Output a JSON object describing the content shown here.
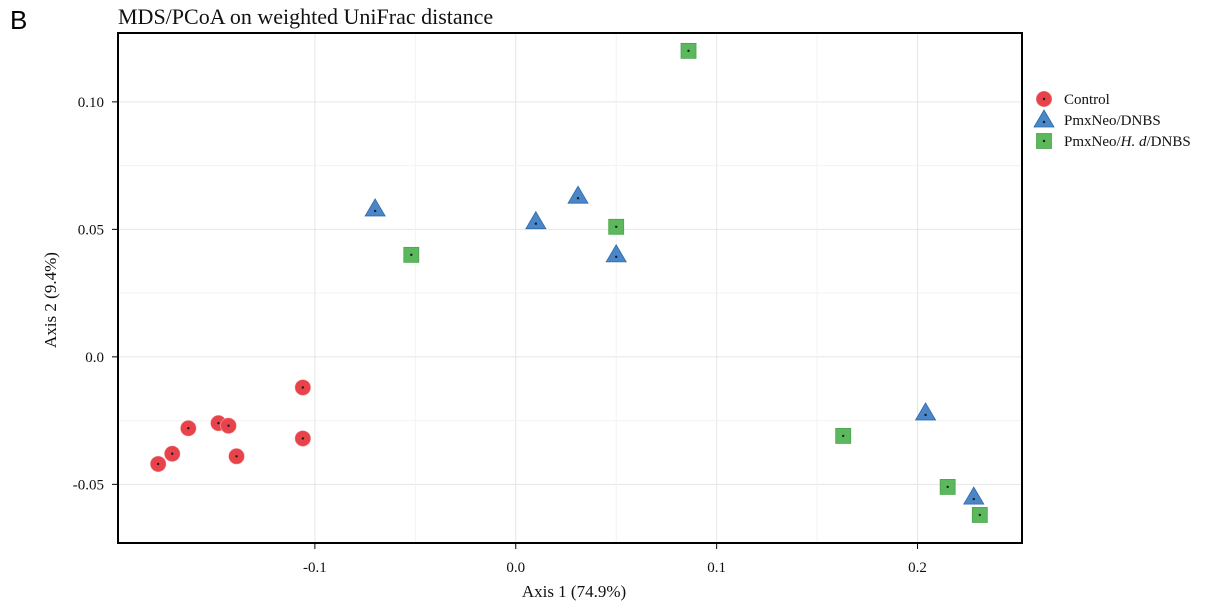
{
  "panel_letter": "B",
  "chart_data": {
    "type": "scatter",
    "title": "MDS/PCoA on weighted UniFrac distance",
    "xlabel": "Axis 1 (74.9%)",
    "ylabel": "Axis 2 (9.4%)",
    "xlim": [
      -0.198,
      0.252
    ],
    "ylim": [
      -0.073,
      0.127
    ],
    "xticks": [
      -0.1,
      0.0,
      0.1,
      0.2
    ],
    "xtick_labels": [
      "-0.1",
      "0.0",
      "0.1",
      "0.2"
    ],
    "yticks": [
      -0.05,
      0.0,
      0.05,
      0.1
    ],
    "ytick_labels": [
      "-0.05",
      "0.0",
      "0.05",
      "0.10"
    ],
    "grid": true,
    "legend_position": "right",
    "series": [
      {
        "name": "Control",
        "marker": "circle",
        "color": "#e8434b",
        "points": [
          [
            -0.178,
            -0.042
          ],
          [
            -0.171,
            -0.038
          ],
          [
            -0.163,
            -0.028
          ],
          [
            -0.148,
            -0.026
          ],
          [
            -0.143,
            -0.027
          ],
          [
            -0.139,
            -0.039
          ],
          [
            -0.106,
            -0.012
          ],
          [
            -0.106,
            -0.032
          ]
        ]
      },
      {
        "name": "PmxNeo/DNBS",
        "marker": "triangle",
        "color": "#4a86c8",
        "points": [
          [
            -0.07,
            0.058
          ],
          [
            0.01,
            0.053
          ],
          [
            0.031,
            0.063
          ],
          [
            0.05,
            0.04
          ],
          [
            0.204,
            -0.022
          ],
          [
            0.228,
            -0.055
          ]
        ]
      },
      {
        "name": "PmxNeo/H. d/DNBS",
        "legend_parts": [
          "PmxNeo/",
          "H. d",
          "/DNBS"
        ],
        "marker": "square",
        "color": "#5cb85c",
        "points": [
          [
            -0.052,
            0.04
          ],
          [
            0.05,
            0.051
          ],
          [
            0.086,
            0.12
          ],
          [
            0.163,
            -0.031
          ],
          [
            0.215,
            -0.051
          ],
          [
            0.231,
            -0.062
          ]
        ]
      }
    ]
  }
}
